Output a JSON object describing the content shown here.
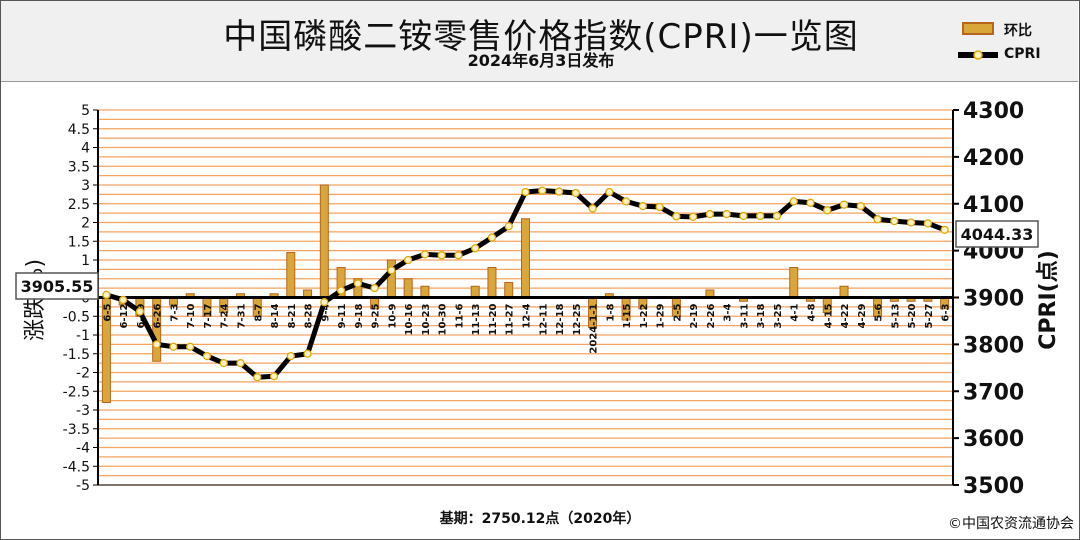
{
  "title": "中国磷酸二铵零售价格指数(CPRI)一览图",
  "subtitle": "2024年6月3日发布",
  "legend": {
    "bar_label": "环比",
    "line_label": "CPRI"
  },
  "footnote": "基期：2750.12点（2020年）",
  "copyright": "©中国农资流通协会",
  "colors": {
    "plot_bg": "#ffffff",
    "gridline": "#f4a460",
    "bar_fill": "#d9a63a",
    "bar_edge": "#b5651d",
    "line": "#000000",
    "marker_fill": "#fff3c4",
    "marker_edge": "#e0a800"
  },
  "chart_data": {
    "type": "bar+line",
    "title": "中国磷酸二铵零售价格指数(CPRI)一览图",
    "xlabel": "",
    "ylabel": "涨跌(%)",
    "y2label": "CPRI(点)",
    "ylim": [
      -5,
      5
    ],
    "y2lim": [
      3500,
      4300
    ],
    "yticks": [
      "5",
      "4.5",
      "4",
      "3.5",
      "3",
      "2.5",
      "2",
      "1.5",
      "1",
      "0.5",
      "0",
      "-0.5",
      "-1",
      "-1.5",
      "-2",
      "-2.5",
      "-3",
      "-3.5",
      "-4",
      "-4.5",
      "-5"
    ],
    "y2ticks": [
      "4300",
      "4200",
      "4100",
      "4000",
      "3900",
      "3800",
      "3700",
      "3600",
      "3500"
    ],
    "categories": [
      "6-5",
      "6-12",
      "6-19",
      "6-26",
      "7-3",
      "7-10",
      "7-17",
      "7-24",
      "7-31",
      "8-7",
      "8-14",
      "8-21",
      "8-28",
      "9-4",
      "9-11",
      "9-18",
      "9-25",
      "10-9",
      "10-16",
      "10-23",
      "10-30",
      "11-6",
      "11-13",
      "11-20",
      "11-27",
      "12-4",
      "12-11",
      "12-18",
      "12-25",
      "2024-1-1",
      "1-8",
      "1-15",
      "1-22",
      "1-29",
      "2-5",
      "2-19",
      "2-26",
      "3-4",
      "3-11",
      "3-18",
      "3-25",
      "4-1",
      "4-8",
      "4-15",
      "4-22",
      "4-29",
      "5-6",
      "5-13",
      "5-20",
      "5-27",
      "6-3"
    ],
    "series": [
      {
        "name": "环比",
        "type": "bar",
        "axis": "left",
        "values": [
          -2.8,
          -0.2,
          -0.5,
          -1.7,
          -0.2,
          0.1,
          -0.5,
          -0.4,
          0.1,
          -0.5,
          0.1,
          1.2,
          0.2,
          3.0,
          0.8,
          0.5,
          -0.3,
          1.0,
          0.5,
          0.3,
          0.0,
          0.0,
          0.3,
          0.8,
          0.4,
          2.1,
          0.0,
          0.0,
          0.0,
          -0.8,
          0.1,
          -0.6,
          -0.3,
          0.0,
          -0.5,
          0.0,
          0.2,
          0.0,
          -0.1,
          0.0,
          0.0,
          0.8,
          -0.1,
          -0.4,
          0.3,
          0.0,
          -0.5,
          -0.1,
          -0.1,
          -0.1,
          -0.3
        ]
      },
      {
        "name": "CPRI",
        "type": "line",
        "axis": "right",
        "values": [
          3905.55,
          3895,
          3870,
          3800,
          3795,
          3795,
          3775,
          3760,
          3760,
          3730,
          3732,
          3775,
          3780,
          3890,
          3915,
          3930,
          3920,
          3958,
          3980,
          3992,
          3990,
          3990,
          4005,
          4028,
          4052,
          4125,
          4128,
          4126,
          4123,
          4090,
          4125,
          4105,
          4095,
          4093,
          4073,
          4072,
          4078,
          4078,
          4074,
          4074,
          4074,
          4105,
          4102,
          4086,
          4098,
          4095,
          4067,
          4063,
          4060,
          4058,
          4044.33
        ]
      }
    ],
    "callouts": {
      "start": "3905.55",
      "end": "4044.33"
    },
    "grid": true
  }
}
